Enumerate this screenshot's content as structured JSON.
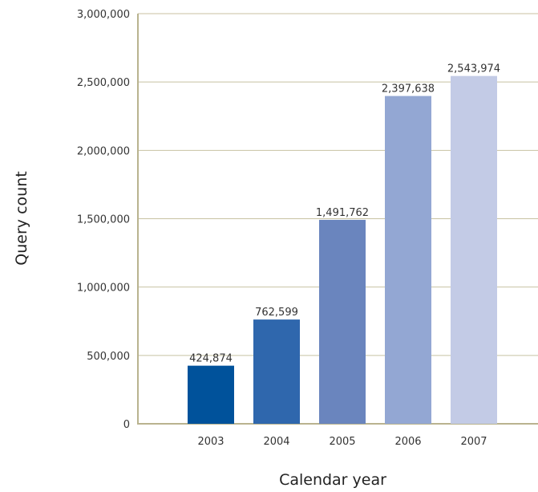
{
  "chart_data": {
    "type": "bar",
    "title": "",
    "xlabel": "Calendar year",
    "ylabel": "Query count",
    "categories": [
      "2003",
      "2004",
      "2005",
      "2006",
      "2007"
    ],
    "values": [
      424874,
      762599,
      1491762,
      2397638,
      2543974
    ],
    "value_labels": [
      "424,874",
      "762,599",
      "1,491,762",
      "2,397,638",
      "2,543,974"
    ],
    "bar_colors": [
      "#00529b",
      "#2f67ad",
      "#6a85be",
      "#93a7d3",
      "#c3cbe6"
    ],
    "ylim": [
      0,
      3000000
    ],
    "yticks": [
      0,
      500000,
      1000000,
      1500000,
      2000000,
      2500000,
      3000000
    ],
    "ytick_labels": [
      "0",
      "500,000",
      "1,000,000",
      "1,500,000",
      "2,000,000",
      "2,500,000",
      "3,000,000"
    ],
    "grid": true,
    "grid_color": "#c8c2a2",
    "axis_color": "#b9b38f",
    "legend": "none"
  }
}
